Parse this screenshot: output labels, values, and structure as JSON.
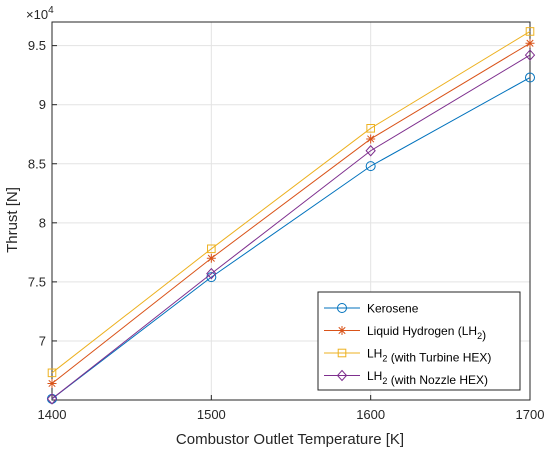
{
  "chart_data": {
    "type": "line",
    "xlabel": "Combustor Outlet Temperature [K]",
    "ylabel": "Thrust [N]",
    "y_multiplier_label": "×10",
    "y_multiplier_exponent": "4",
    "x": [
      1400,
      1500,
      1600,
      1700
    ],
    "xlim": [
      1400,
      1700
    ],
    "ylim": [
      6.5,
      9.7
    ],
    "xticks": [
      "1400",
      "1500",
      "1600",
      "1700"
    ],
    "yticks": [
      "7",
      "7.5",
      "8",
      "8.5",
      "9",
      "9.5"
    ],
    "ytick_values": [
      7,
      7.5,
      8,
      8.5,
      9,
      9.5
    ],
    "grid": true,
    "legend_position": "bottom-right",
    "series": [
      {
        "name": "Kerosene",
        "legend_parts": [
          {
            "t": "Kerosene"
          }
        ],
        "values": [
          6.51,
          7.54,
          8.48,
          9.23
        ],
        "color": "#0072BD",
        "marker": "circle"
      },
      {
        "name": "Liquid Hydrogen (LH2)",
        "legend_parts": [
          {
            "t": "Liquid Hydrogen (LH"
          },
          {
            "t": "2",
            "sub": true
          },
          {
            "t": ")"
          }
        ],
        "values": [
          6.64,
          7.7,
          8.71,
          9.52
        ],
        "color": "#D95319",
        "marker": "asterisk"
      },
      {
        "name": "LH2 (with Turbine HEX)",
        "legend_parts": [
          {
            "t": "LH"
          },
          {
            "t": "2",
            "sub": true
          },
          {
            "t": " (with Turbine HEX)"
          }
        ],
        "values": [
          6.73,
          7.78,
          8.8,
          9.62
        ],
        "color": "#EDB120",
        "marker": "square"
      },
      {
        "name": "LH2 (with Nozzle HEX)",
        "legend_parts": [
          {
            "t": "LH"
          },
          {
            "t": "2",
            "sub": true
          },
          {
            "t": " (with Nozzle HEX)"
          }
        ],
        "values": [
          6.51,
          7.57,
          8.61,
          9.42
        ],
        "color": "#7E2F8E",
        "marker": "diamond"
      }
    ]
  }
}
